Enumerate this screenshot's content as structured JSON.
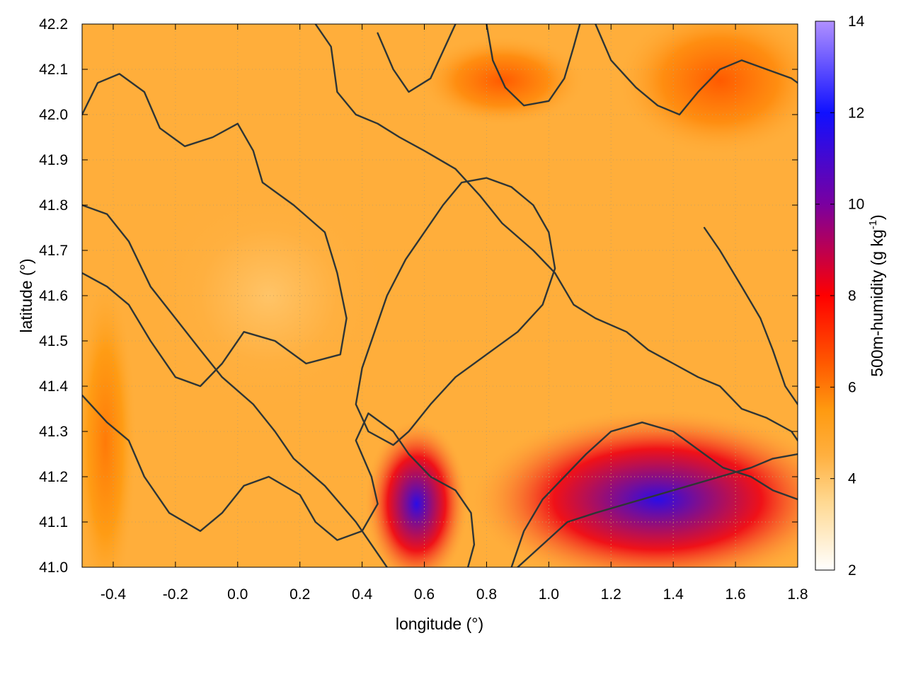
{
  "chart_data": {
    "type": "heatmap",
    "title": "",
    "xlabel": "longitude (°)",
    "ylabel": "latitude (°)",
    "xlim": [
      -0.5,
      1.8
    ],
    "ylim": [
      41.0,
      42.2
    ],
    "x_ticks": [
      "-0.4",
      "-0.2",
      "0.0",
      "0.2",
      "0.4",
      "0.6",
      "0.8",
      "1.0",
      "1.2",
      "1.4",
      "1.6",
      "1.8"
    ],
    "y_ticks": [
      "41.0",
      "41.1",
      "41.2",
      "41.3",
      "41.4",
      "41.5",
      "41.6",
      "41.7",
      "41.8",
      "41.9",
      "42.0",
      "42.1",
      "42.2"
    ],
    "grid": true,
    "colorbar": {
      "label": "500m-humidity (g kg",
      "label_superscript": "-1",
      "label_suffix": ")",
      "range": [
        2,
        14
      ],
      "ticks": [
        "2",
        "4",
        "6",
        "8",
        "10",
        "12",
        "14"
      ],
      "stops": [
        {
          "value": 2,
          "color": "#ffffff"
        },
        {
          "value": 3.5,
          "color": "#ffd890"
        },
        {
          "value": 4.5,
          "color": "#ffb040"
        },
        {
          "value": 5.5,
          "color": "#ff9a10"
        },
        {
          "value": 6.5,
          "color": "#ff5a00"
        },
        {
          "value": 8,
          "color": "#ff0000"
        },
        {
          "value": 10,
          "color": "#7a00a0"
        },
        {
          "value": 12,
          "color": "#1010ff"
        },
        {
          "value": 14,
          "color": "#b090ff"
        }
      ]
    },
    "field_summary": [
      {
        "region": "background",
        "value": 4.5
      },
      {
        "region": "north-east corner",
        "lon": [
          1.3,
          1.8
        ],
        "lat": [
          41.95,
          42.2
        ],
        "value": 6.5
      },
      {
        "region": "north-central highs",
        "lon": [
          0.65,
          1.05
        ],
        "lat": [
          42.0,
          42.15
        ],
        "value": 6.5
      },
      {
        "region": "south-east maximum",
        "lon": [
          0.9,
          1.8
        ],
        "lat": [
          41.0,
          41.3
        ],
        "value": 11.5
      },
      {
        "region": "south-central maximum",
        "lon": [
          0.45,
          0.7
        ],
        "lat": [
          41.0,
          41.28
        ],
        "value": 11.5
      },
      {
        "region": "west edge",
        "lon": [
          -0.5,
          -0.35
        ],
        "lat": [
          41.0,
          41.55
        ],
        "value": 6.0
      },
      {
        "region": "central dry band",
        "lon": [
          -0.2,
          0.4
        ],
        "lat": [
          41.4,
          41.8
        ],
        "value": 4.0
      }
    ],
    "contours": [
      {
        "name": "contour-1",
        "points": [
          [
            -0.5,
            42.0
          ],
          [
            -0.45,
            42.07
          ],
          [
            -0.38,
            42.09
          ],
          [
            -0.3,
            42.05
          ],
          [
            -0.25,
            41.97
          ],
          [
            -0.17,
            41.93
          ],
          [
            -0.08,
            41.95
          ],
          [
            0.0,
            41.98
          ],
          [
            0.05,
            41.92
          ],
          [
            0.08,
            41.85
          ],
          [
            0.18,
            41.8
          ],
          [
            0.28,
            41.74
          ],
          [
            0.32,
            41.65
          ],
          [
            0.35,
            41.55
          ],
          [
            0.33,
            41.47
          ],
          [
            0.22,
            41.45
          ],
          [
            0.12,
            41.5
          ],
          [
            0.02,
            41.52
          ],
          [
            -0.05,
            41.45
          ],
          [
            -0.12,
            41.4
          ],
          [
            -0.2,
            41.42
          ],
          [
            -0.28,
            41.5
          ],
          [
            -0.35,
            41.58
          ],
          [
            -0.42,
            41.62
          ],
          [
            -0.5,
            41.65
          ]
        ]
      },
      {
        "name": "contour-2",
        "points": [
          [
            -0.5,
            41.8
          ],
          [
            -0.42,
            41.78
          ],
          [
            -0.35,
            41.72
          ],
          [
            -0.28,
            41.62
          ],
          [
            -0.2,
            41.55
          ],
          [
            -0.12,
            41.48
          ],
          [
            -0.05,
            41.42
          ],
          [
            0.05,
            41.36
          ],
          [
            0.12,
            41.3
          ],
          [
            0.18,
            41.24
          ],
          [
            0.28,
            41.18
          ],
          [
            0.38,
            41.1
          ],
          [
            0.45,
            41.03
          ],
          [
            0.48,
            41.0
          ]
        ]
      },
      {
        "name": "contour-3",
        "points": [
          [
            -0.5,
            41.38
          ],
          [
            -0.42,
            41.32
          ],
          [
            -0.35,
            41.28
          ],
          [
            -0.3,
            41.2
          ],
          [
            -0.22,
            41.12
          ],
          [
            -0.12,
            41.08
          ],
          [
            -0.05,
            41.12
          ],
          [
            0.02,
            41.18
          ],
          [
            0.1,
            41.2
          ],
          [
            0.2,
            41.16
          ],
          [
            0.25,
            41.1
          ],
          [
            0.32,
            41.06
          ],
          [
            0.4,
            41.08
          ],
          [
            0.45,
            41.14
          ],
          [
            0.43,
            41.2
          ],
          [
            0.38,
            41.28
          ],
          [
            0.42,
            41.34
          ],
          [
            0.5,
            41.3
          ],
          [
            0.55,
            41.25
          ],
          [
            0.62,
            41.2
          ],
          [
            0.7,
            41.17
          ],
          [
            0.75,
            41.12
          ],
          [
            0.76,
            41.05
          ],
          [
            0.74,
            41.0
          ]
        ]
      },
      {
        "name": "contour-4",
        "points": [
          [
            0.25,
            42.2
          ],
          [
            0.3,
            42.15
          ],
          [
            0.32,
            42.05
          ],
          [
            0.38,
            42.0
          ],
          [
            0.45,
            41.98
          ],
          [
            0.52,
            41.95
          ],
          [
            0.6,
            41.92
          ],
          [
            0.7,
            41.88
          ],
          [
            0.78,
            41.82
          ],
          [
            0.85,
            41.76
          ],
          [
            0.95,
            41.7
          ],
          [
            1.02,
            41.65
          ],
          [
            1.08,
            41.58
          ],
          [
            1.15,
            41.55
          ],
          [
            1.25,
            41.52
          ],
          [
            1.32,
            41.48
          ],
          [
            1.4,
            41.45
          ],
          [
            1.48,
            41.42
          ],
          [
            1.55,
            41.4
          ],
          [
            1.62,
            41.35
          ],
          [
            1.7,
            41.33
          ],
          [
            1.78,
            41.3
          ],
          [
            1.8,
            41.28
          ]
        ]
      },
      {
        "name": "contour-5",
        "points": [
          [
            0.55,
            41.3
          ],
          [
            0.62,
            41.36
          ],
          [
            0.7,
            41.42
          ],
          [
            0.8,
            41.47
          ],
          [
            0.9,
            41.52
          ],
          [
            0.98,
            41.58
          ],
          [
            1.02,
            41.66
          ],
          [
            1.0,
            41.74
          ],
          [
            0.95,
            41.8
          ],
          [
            0.88,
            41.84
          ],
          [
            0.8,
            41.86
          ],
          [
            0.72,
            41.85
          ],
          [
            0.66,
            41.8
          ],
          [
            0.6,
            41.74
          ],
          [
            0.54,
            41.68
          ],
          [
            0.48,
            41.6
          ],
          [
            0.44,
            41.52
          ],
          [
            0.4,
            41.44
          ],
          [
            0.38,
            41.36
          ],
          [
            0.42,
            41.3
          ],
          [
            0.5,
            41.27
          ],
          [
            0.55,
            41.3
          ]
        ]
      },
      {
        "name": "contour-6",
        "points": [
          [
            0.8,
            42.2
          ],
          [
            0.82,
            42.12
          ],
          [
            0.86,
            42.06
          ],
          [
            0.92,
            42.02
          ],
          [
            1.0,
            42.03
          ],
          [
            1.05,
            42.08
          ],
          [
            1.08,
            42.15
          ],
          [
            1.1,
            42.2
          ]
        ]
      },
      {
        "name": "contour-7",
        "points": [
          [
            1.15,
            42.2
          ],
          [
            1.2,
            42.12
          ],
          [
            1.28,
            42.06
          ],
          [
            1.35,
            42.02
          ],
          [
            1.42,
            42.0
          ],
          [
            1.48,
            42.05
          ],
          [
            1.55,
            42.1
          ],
          [
            1.62,
            42.12
          ],
          [
            1.7,
            42.1
          ],
          [
            1.78,
            42.08
          ],
          [
            1.8,
            42.07
          ]
        ]
      },
      {
        "name": "contour-8",
        "points": [
          [
            0.88,
            41.0
          ],
          [
            0.92,
            41.08
          ],
          [
            0.98,
            41.15
          ],
          [
            1.05,
            41.2
          ],
          [
            1.12,
            41.25
          ],
          [
            1.2,
            41.3
          ],
          [
            1.3,
            41.32
          ],
          [
            1.4,
            41.3
          ],
          [
            1.48,
            41.26
          ],
          [
            1.56,
            41.22
          ],
          [
            1.65,
            41.2
          ],
          [
            1.72,
            41.17
          ],
          [
            1.8,
            41.15
          ]
        ]
      },
      {
        "name": "contour-9",
        "points": [
          [
            0.9,
            41.0
          ],
          [
            0.98,
            41.05
          ],
          [
            1.06,
            41.1
          ],
          [
            1.15,
            41.12
          ],
          [
            1.25,
            41.14
          ],
          [
            1.35,
            41.16
          ],
          [
            1.45,
            41.18
          ],
          [
            1.55,
            41.2
          ],
          [
            1.65,
            41.22
          ],
          [
            1.72,
            41.24
          ],
          [
            1.8,
            41.25
          ]
        ]
      },
      {
        "name": "contour-10",
        "points": [
          [
            1.5,
            41.75
          ],
          [
            1.55,
            41.7
          ],
          [
            1.62,
            41.62
          ],
          [
            1.68,
            41.55
          ],
          [
            1.72,
            41.48
          ],
          [
            1.76,
            41.4
          ],
          [
            1.8,
            41.36
          ]
        ]
      },
      {
        "name": "contour-11",
        "points": [
          [
            0.45,
            42.18
          ],
          [
            0.5,
            42.1
          ],
          [
            0.55,
            42.05
          ],
          [
            0.62,
            42.08
          ],
          [
            0.66,
            42.14
          ],
          [
            0.7,
            42.2
          ]
        ]
      }
    ]
  }
}
